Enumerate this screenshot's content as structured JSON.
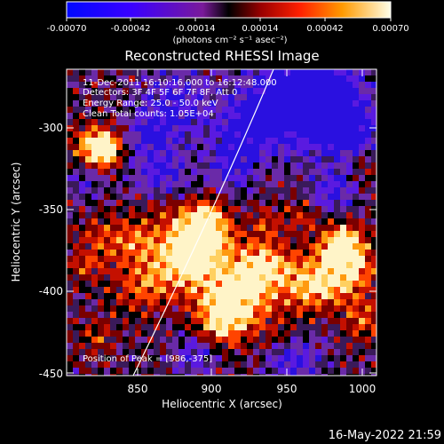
{
  "colorbar": {
    "ticks": [
      "-0.00070",
      "-0.00042",
      "-0.00014",
      "0.00014",
      "0.00042",
      "0.00070"
    ],
    "units": "(photons cm⁻² s⁻¹ asec⁻²)"
  },
  "title": "Reconstructed RHESSI Image",
  "info": {
    "time": "11-Dec-2011 16:10:16.000 to 16:12:48.000",
    "detectors": "Detectors: 3F 4F 5F 6F 7F 8F, Att 0",
    "energy": "Energy Range: 25.0 - 50.0 keV",
    "clean": "Clean     Total counts: 1.05E+04",
    "peak": "Position of Peak = [986,-375]"
  },
  "axes": {
    "xlabel": "Heliocentric X (arcsec)",
    "ylabel": "Heliocentric Y (arcsec)",
    "xticks": [
      "850",
      "900",
      "950",
      "1000"
    ],
    "yticks": [
      "-300",
      "-350",
      "-400",
      "-450"
    ]
  },
  "footer": {
    "timestamp": "16-May-2022 21:59"
  },
  "colors": {
    "background": "#000000",
    "text": "#ffffff"
  },
  "chart_data": {
    "type": "heatmap",
    "title": "Reconstructed RHESSI Image",
    "xlabel": "Heliocentric X (arcsec)",
    "ylabel": "Heliocentric Y (arcsec)",
    "xlim": [
      812,
      1002
    ],
    "ylim": [
      -452,
      -270
    ],
    "zlim": [
      -0.0007,
      0.0007
    ],
    "colorbar_unit": "(photons cm⁻² s⁻¹ asec⁻²)",
    "peak": [
      986,
      -375
    ],
    "grid": false
  }
}
